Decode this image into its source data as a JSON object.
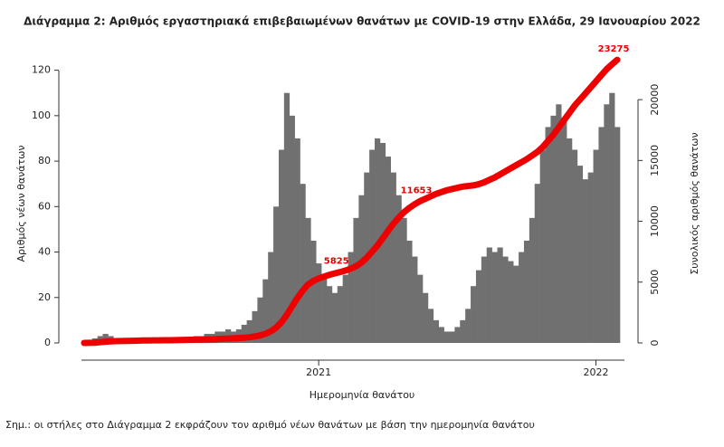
{
  "chart_data": {
    "type": "bar_line",
    "title": "Διάγραμμα 2: Αριθμός εργαστηριακά επιβεβαιωμένων θανάτων με COVID-19 στην Ελλάδα, 29 Ιανουαρίου 2022",
    "x_label": "Ημερομηνία θανάτου",
    "y_label": "Αριθμός νέων θανάτων",
    "y2_label": "Συνολικός αριθμός θανάτων",
    "note": "Σημ.: οι στήλες στο Διάγραμμα 2 εκφράζουν τον αριθμό νέων θανάτων με βάση την ημερομηνία θανάτου",
    "categories": [
      null,
      null,
      null,
      null,
      null,
      null,
      null,
      null,
      null,
      null,
      null,
      null,
      null,
      null,
      null,
      null,
      null,
      null,
      null,
      null,
      null,
      null,
      null,
      null,
      null,
      null,
      null,
      null,
      null,
      null,
      null,
      null,
      null,
      null,
      null,
      null,
      null,
      null,
      null,
      null,
      null,
      null,
      null,
      null,
      "2021",
      null,
      null,
      null,
      null,
      null,
      null,
      null,
      null,
      null,
      null,
      null,
      null,
      null,
      null,
      null,
      null,
      null,
      null,
      null,
      null,
      null,
      null,
      null,
      null,
      null,
      null,
      null,
      null,
      null,
      null,
      null,
      null,
      null,
      null,
      null,
      null,
      null,
      null,
      null,
      null,
      null,
      null,
      null,
      null,
      null,
      null,
      null,
      null,
      null,
      null,
      null,
      "2022",
      null,
      null,
      null,
      null
    ],
    "ylim": [
      0,
      129
    ],
    "yticks": [
      0,
      20,
      40,
      60,
      80,
      100,
      120
    ],
    "y2lim": [
      0,
      24100
    ],
    "y2ticks": [
      0,
      5000,
      10000,
      15000,
      20000
    ],
    "series": [
      {
        "type": "bar",
        "color": "#707070",
        "values": [
          0,
          1,
          2,
          3,
          4,
          3,
          2,
          2,
          1,
          1,
          1,
          1,
          0,
          1,
          1,
          1,
          1,
          1,
          2,
          2,
          2,
          3,
          3,
          4,
          4,
          5,
          5,
          6,
          5,
          6,
          8,
          10,
          14,
          20,
          28,
          40,
          60,
          85,
          110,
          100,
          90,
          70,
          55,
          45,
          35,
          30,
          25,
          22,
          25,
          30,
          40,
          55,
          65,
          75,
          85,
          90,
          88,
          82,
          75,
          65,
          55,
          45,
          38,
          30,
          22,
          15,
          10,
          7,
          5,
          5,
          7,
          10,
          15,
          25,
          32,
          38,
          42,
          40,
          42,
          38,
          36,
          34,
          40,
          45,
          55,
          70,
          85,
          95,
          100,
          105,
          98,
          90,
          85,
          78,
          72,
          75,
          85,
          95,
          105,
          110,
          95
        ]
      },
      {
        "type": "line",
        "axis": "y2",
        "color": "#ee0000",
        "values": [
          0,
          5,
          20,
          60,
          100,
          130,
          150,
          160,
          170,
          180,
          190,
          200,
          205,
          210,
          215,
          220,
          225,
          230,
          240,
          250,
          260,
          270,
          280,
          290,
          300,
          320,
          340,
          360,
          380,
          400,
          430,
          470,
          530,
          620,
          750,
          950,
          1250,
          1700,
          2300,
          3000,
          3700,
          4300,
          4800,
          5100,
          5300,
          5450,
          5600,
          5720,
          5825,
          5950,
          6100,
          6300,
          6600,
          7000,
          7500,
          8000,
          8600,
          9200,
          9800,
          10300,
          10750,
          11100,
          11400,
          11653,
          11850,
          12050,
          12250,
          12400,
          12550,
          12650,
          12750,
          12850,
          12900,
          12950,
          13050,
          13200,
          13400,
          13600,
          13850,
          14100,
          14350,
          14600,
          14850,
          15100,
          15400,
          15700,
          16100,
          16600,
          17100,
          17700,
          18300,
          18900,
          19500,
          20000,
          20500,
          21000,
          21500,
          22000,
          22500,
          22900,
          23275
        ],
        "value_labels": [
          null,
          null,
          null,
          null,
          null,
          null,
          null,
          null,
          null,
          null,
          null,
          null,
          null,
          null,
          null,
          null,
          null,
          null,
          null,
          null,
          null,
          null,
          null,
          null,
          null,
          null,
          null,
          null,
          null,
          null,
          null,
          null,
          null,
          null,
          null,
          null,
          null,
          null,
          null,
          null,
          null,
          null,
          null,
          null,
          null,
          null,
          null,
          null,
          "5825",
          null,
          null,
          null,
          null,
          null,
          null,
          null,
          null,
          null,
          null,
          null,
          null,
          null,
          null,
          "11653",
          null,
          null,
          null,
          null,
          null,
          null,
          null,
          null,
          null,
          null,
          null,
          null,
          null,
          null,
          null,
          null,
          null,
          null,
          null,
          null,
          null,
          null,
          null,
          null,
          null,
          null,
          null,
          null,
          null,
          null,
          null,
          null,
          null,
          null,
          null,
          null,
          "23275"
        ]
      }
    ]
  }
}
